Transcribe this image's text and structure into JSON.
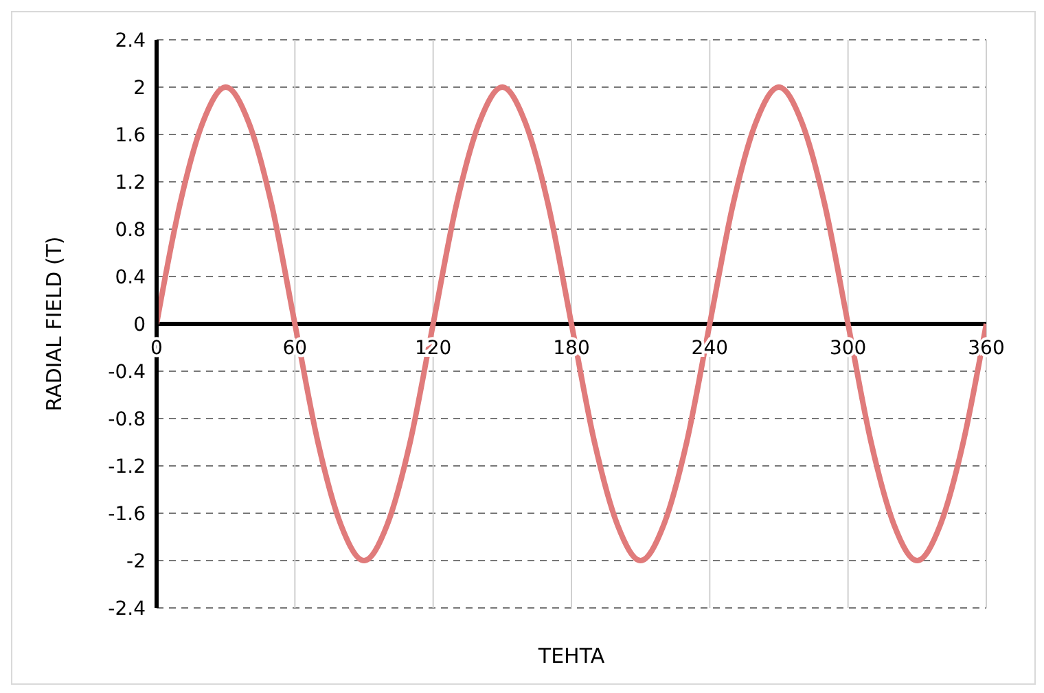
{
  "chart_data": {
    "type": "line",
    "xlabel": "TEHTA",
    "ylabel": "RADIAL FIELD (T)",
    "x": [
      0,
      10,
      20,
      30,
      40,
      50,
      60,
      70,
      80,
      90,
      100,
      110,
      120,
      130,
      140,
      150,
      160,
      170,
      180,
      190,
      200,
      210,
      220,
      230,
      240,
      250,
      260,
      270,
      280,
      290,
      300,
      310,
      320,
      330,
      340,
      350,
      360
    ],
    "series": [
      {
        "color": "#e07b7b",
        "values": [
          0,
          1,
          1.7,
          2,
          1.7,
          1,
          0,
          -1,
          -1.7,
          -2,
          -1.7,
          -1,
          0,
          1,
          1.7,
          2,
          1.7,
          1,
          0,
          -1,
          -1.7,
          -2,
          -1.7,
          -1,
          0,
          1,
          1.7,
          2,
          1.7,
          1,
          0,
          -1,
          -1.7,
          -2,
          -1.7,
          -1,
          0
        ]
      }
    ],
    "xlim": [
      0,
      360
    ],
    "xticks": [
      0,
      60,
      120,
      180,
      240,
      300,
      360
    ],
    "ylim": [
      -2.4,
      2.4
    ],
    "yticks": [
      -2.4,
      -2,
      -1.6,
      -1.2,
      -0.8,
      -0.4,
      0,
      0.4,
      0.8,
      1.2,
      1.6,
      2,
      2.4
    ],
    "grid": true,
    "marker": "none",
    "line_style": "solid"
  }
}
